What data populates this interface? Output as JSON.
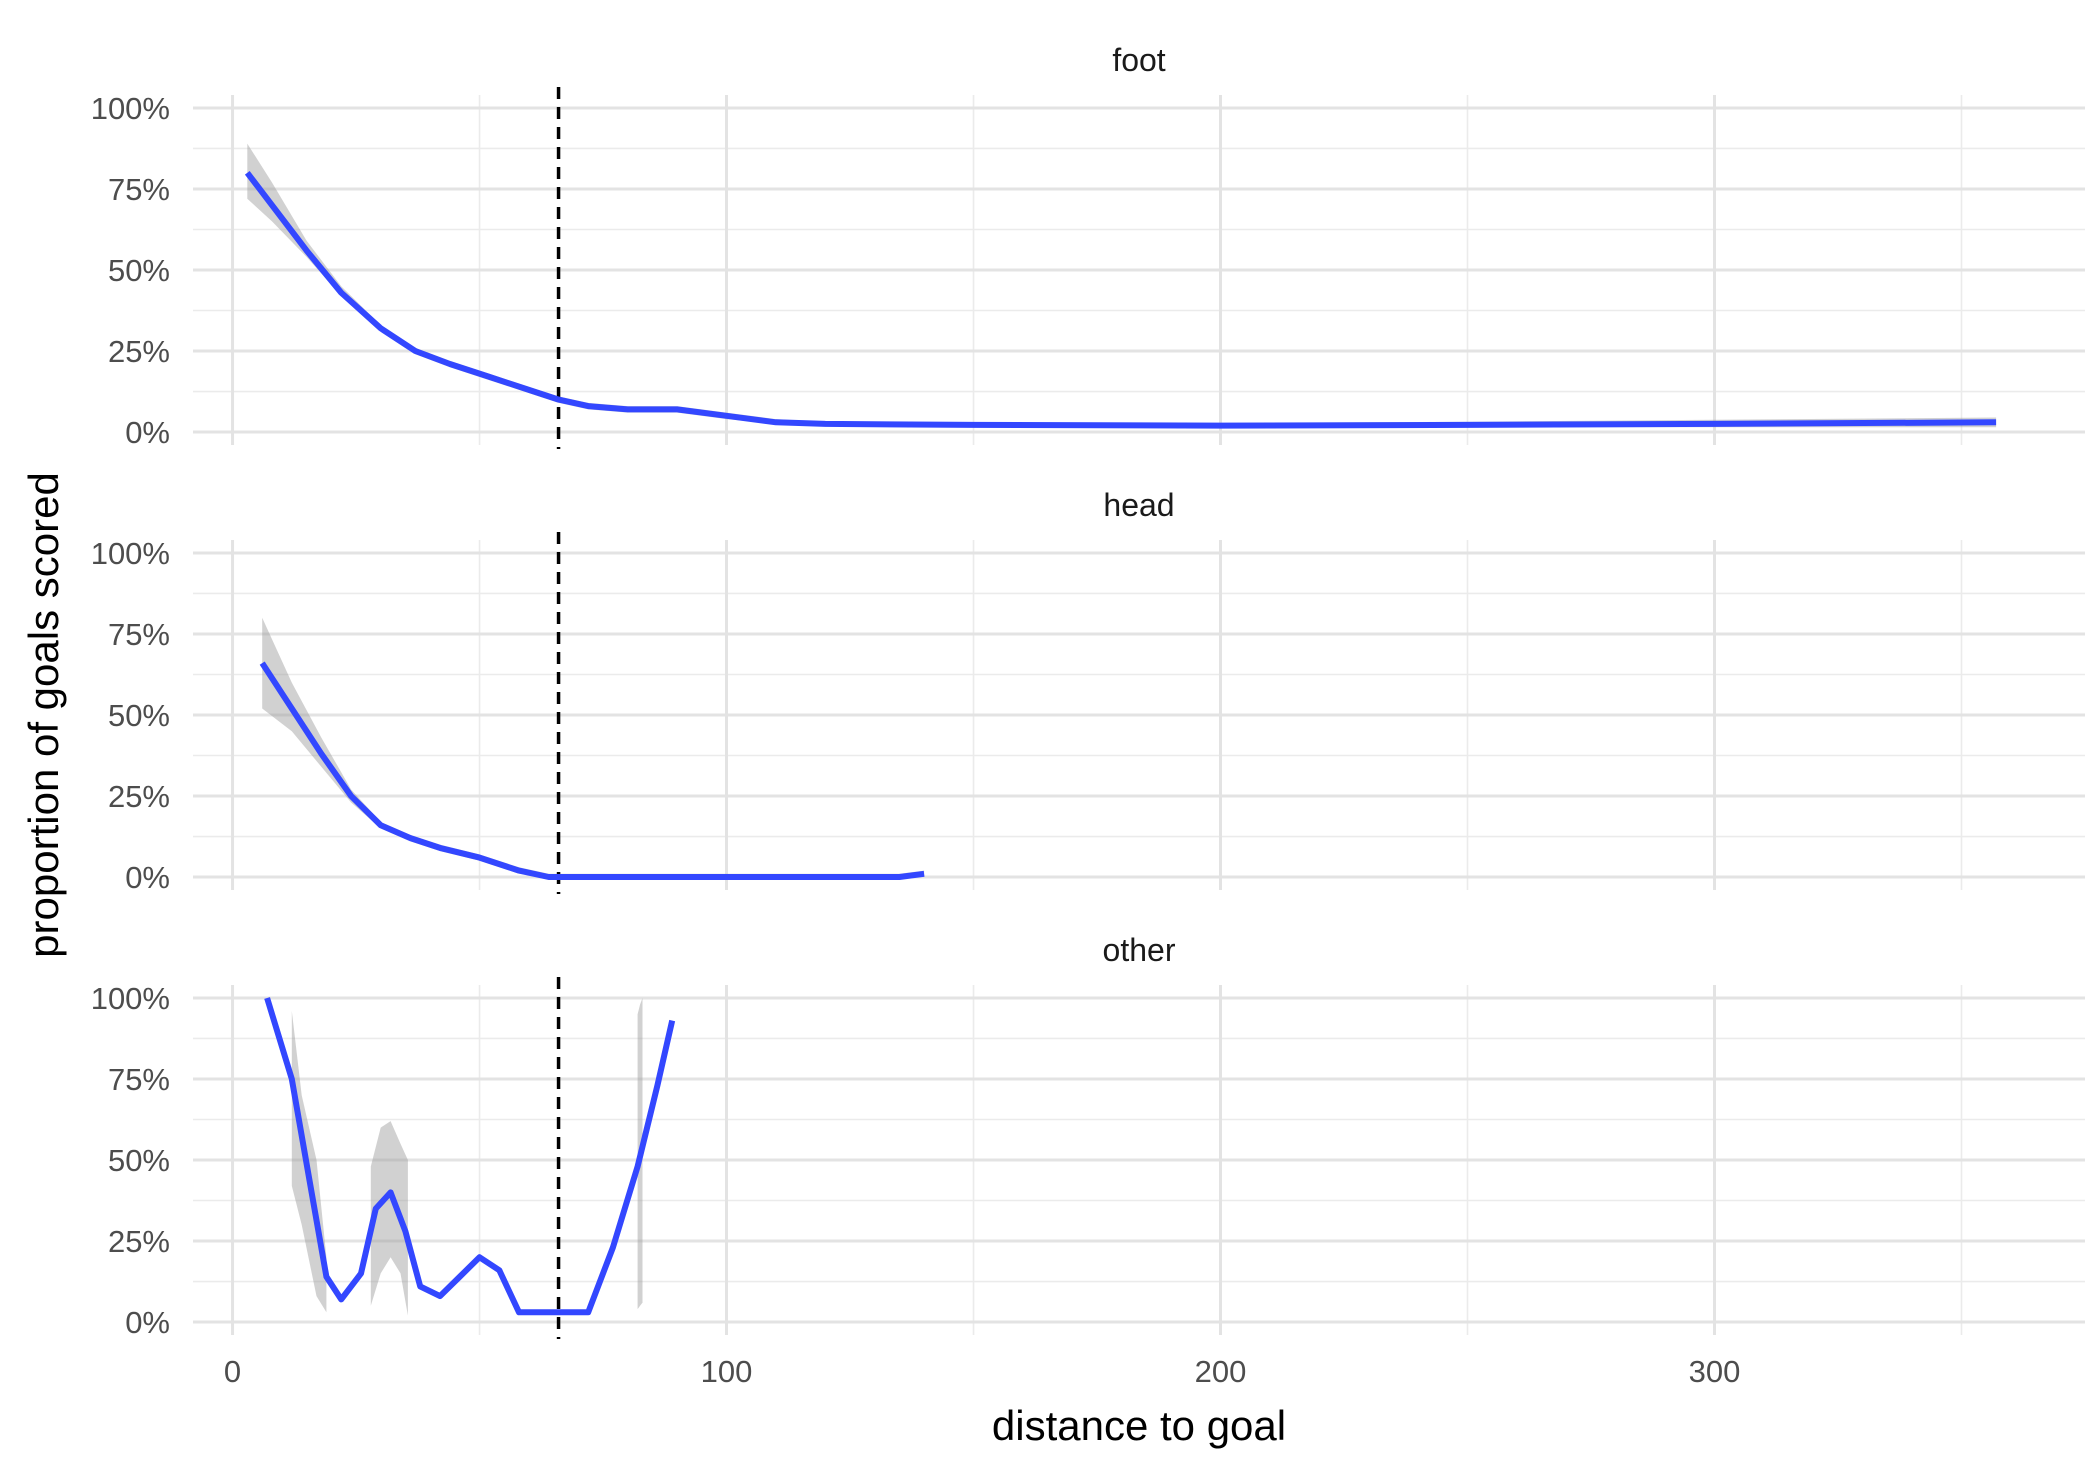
{
  "chart_data": {
    "type": "line",
    "title": "",
    "xlabel": "distance to goal",
    "ylabel": "proportion of goals scored",
    "xlim": [
      -8,
      375
    ],
    "ylim": [
      -0.04,
      1.04
    ],
    "x_ticks": [
      0,
      100,
      200,
      300
    ],
    "x_tick_labels": [
      "0",
      "100",
      "200",
      "300"
    ],
    "x_minor_ticks": [
      50,
      150,
      250,
      350
    ],
    "y_ticks": [
      0,
      0.25,
      0.5,
      0.75,
      1.0
    ],
    "y_tick_labels": [
      "0%",
      "25%",
      "50%",
      "75%",
      "100%"
    ],
    "y_minor_ticks": [
      0.125,
      0.375,
      0.625,
      0.875
    ],
    "grid": true,
    "reference_line": {
      "x": 66,
      "style": "dashed",
      "color": "#000000"
    },
    "line_color": "#3347FF",
    "ribbon_color": "#999999",
    "panels": [
      {
        "label": "foot",
        "x": [
          3,
          8,
          15,
          22,
          30,
          37,
          44,
          52,
          60,
          66,
          72,
          80,
          90,
          100,
          110,
          120,
          150,
          200,
          250,
          300,
          357
        ],
        "y": [
          0.8,
          0.7,
          0.56,
          0.43,
          0.32,
          0.25,
          0.21,
          0.17,
          0.13,
          0.1,
          0.08,
          0.07,
          0.07,
          0.05,
          0.03,
          0.025,
          0.022,
          0.02,
          0.022,
          0.025,
          0.03
        ],
        "lower": [
          0.72,
          0.65,
          0.54,
          0.42,
          0.31,
          0.24,
          0.2,
          0.16,
          0.12,
          0.09,
          0.07,
          0.06,
          0.06,
          0.04,
          0.025,
          0.02,
          0.018,
          0.015,
          0.015,
          0.015,
          0.015
        ],
        "upper": [
          0.89,
          0.77,
          0.59,
          0.45,
          0.33,
          0.26,
          0.22,
          0.18,
          0.14,
          0.11,
          0.09,
          0.08,
          0.08,
          0.06,
          0.04,
          0.03,
          0.028,
          0.028,
          0.032,
          0.038,
          0.045
        ]
      },
      {
        "label": "head",
        "x": [
          6,
          12,
          18,
          24,
          30,
          36,
          42,
          50,
          58,
          64,
          70,
          80,
          100,
          120,
          135,
          140
        ],
        "y": [
          0.66,
          0.52,
          0.38,
          0.25,
          0.16,
          0.12,
          0.09,
          0.06,
          0.02,
          0.0,
          0.0,
          0.0,
          0.0,
          0.0,
          0.0,
          0.01
        ],
        "lower": [
          0.52,
          0.45,
          0.34,
          0.23,
          0.15,
          0.11,
          0.08,
          0.05,
          0.01,
          0.0,
          0.0,
          0.0,
          0.0,
          0.0,
          0.0,
          0.0
        ],
        "upper": [
          0.8,
          0.6,
          0.43,
          0.27,
          0.17,
          0.13,
          0.1,
          0.07,
          0.03,
          0.01,
          0.01,
          0.01,
          0.01,
          0.01,
          0.01,
          0.02
        ]
      },
      {
        "label": "other",
        "x": [
          7,
          12,
          16,
          19,
          22,
          26,
          29,
          32,
          35,
          38,
          42,
          46,
          50,
          54,
          58,
          63,
          68,
          72,
          77,
          82,
          86,
          89
        ],
        "y": [
          1.0,
          0.75,
          0.4,
          0.14,
          0.07,
          0.15,
          0.35,
          0.4,
          0.28,
          0.11,
          0.08,
          0.14,
          0.2,
          0.16,
          0.03,
          0.03,
          0.03,
          0.03,
          0.23,
          0.48,
          0.73,
          0.93
        ],
        "ribbon_segments": [
          {
            "x": [
              12,
              14,
              17,
              19
            ],
            "lower": [
              0.42,
              0.3,
              0.08,
              0.03
            ],
            "upper": [
              0.96,
              0.7,
              0.5,
              0.2
            ]
          },
          {
            "x": [
              28,
              30,
              32,
              34,
              35.5
            ],
            "lower": [
              0.05,
              0.15,
              0.2,
              0.15,
              0.02
            ],
            "upper": [
              0.48,
              0.6,
              0.62,
              0.55,
              0.5
            ]
          },
          {
            "x": [
              82,
              82.5,
              83
            ],
            "lower": [
              0.04,
              0.05,
              0.06
            ],
            "upper": [
              0.95,
              0.98,
              1.0
            ]
          }
        ]
      }
    ]
  }
}
